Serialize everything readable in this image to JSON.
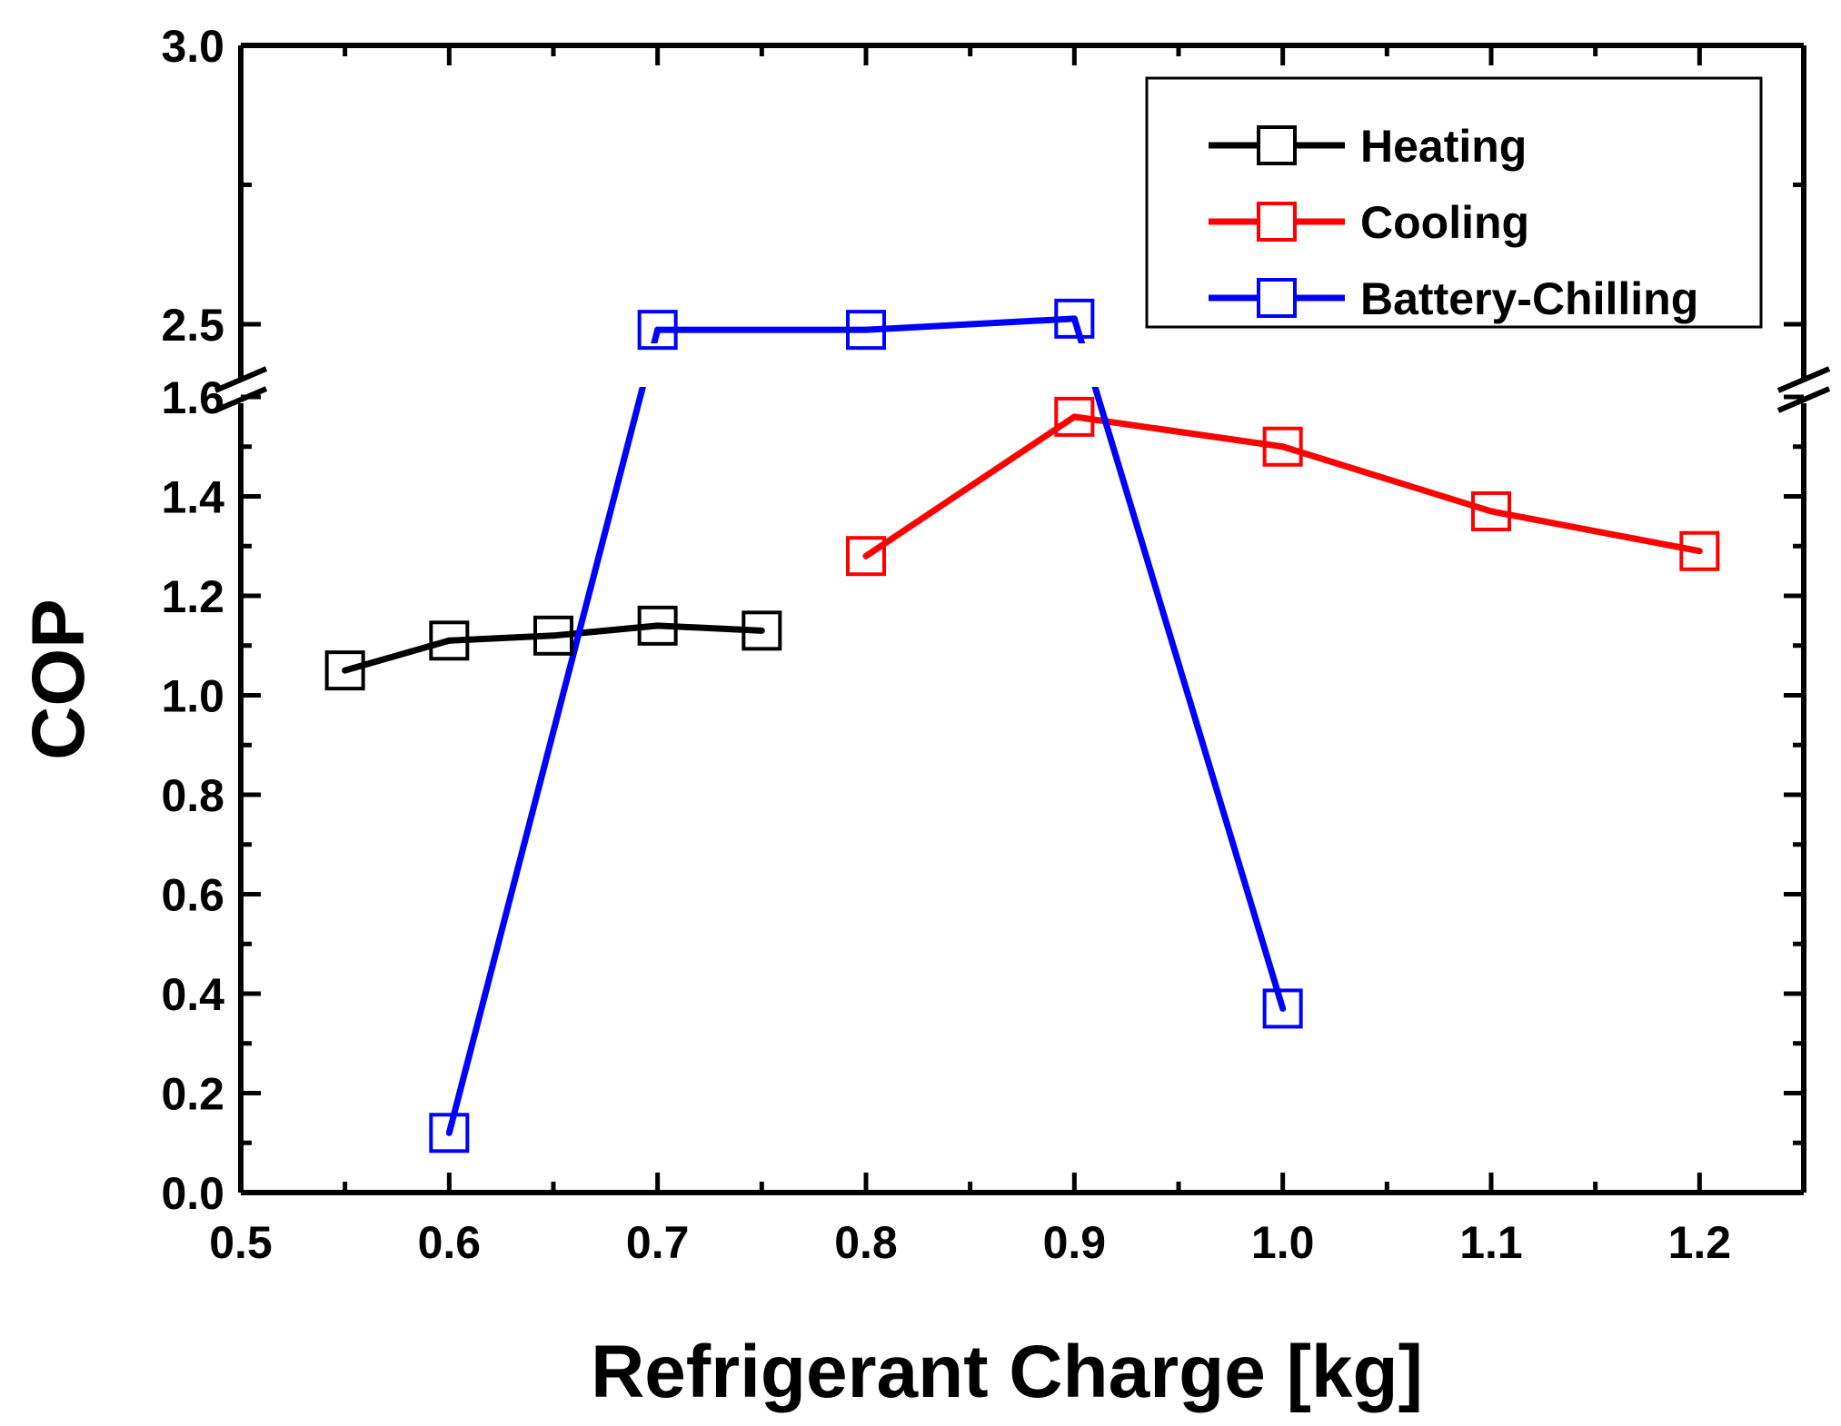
{
  "chart_data": {
    "type": "line",
    "title": "",
    "xlabel": "Refrigerant Charge [kg]",
    "ylabel": "COP",
    "xlim": [
      0.5,
      1.25
    ],
    "ylim": [
      0.0,
      3.0
    ],
    "y_axis_break": {
      "lower_range": [
        0.0,
        1.6
      ],
      "upper_range": [
        2.5,
        3.0
      ]
    },
    "x_ticks": [
      "0.5",
      "0.6",
      "0.7",
      "0.8",
      "0.9",
      "1.0",
      "1.1",
      "1.2"
    ],
    "y_ticks_lower": [
      "0.0",
      "0.2",
      "0.4",
      "0.6",
      "0.8",
      "1.0",
      "1.2",
      "1.4",
      "1.6"
    ],
    "y_ticks_upper": [
      "2.5",
      "3.0"
    ],
    "legend_position": "top-right",
    "series": [
      {
        "name": "Heating",
        "color": "#000000",
        "marker": "open-square",
        "x": [
          0.55,
          0.6,
          0.65,
          0.7,
          0.75
        ],
        "values": [
          1.05,
          1.11,
          1.12,
          1.14,
          1.13
        ]
      },
      {
        "name": "Cooling",
        "color": "#ff0000",
        "marker": "open-square",
        "x": [
          0.8,
          0.9,
          1.0,
          1.1,
          1.2
        ],
        "values": [
          1.28,
          1.56,
          1.5,
          1.37,
          1.29
        ]
      },
      {
        "name": "Battery-Chilling",
        "color": "#0000ff",
        "marker": "open-square",
        "x": [
          0.6,
          0.7,
          0.8,
          0.9,
          1.0
        ],
        "values": [
          0.12,
          2.49,
          2.49,
          2.51,
          0.37
        ]
      }
    ]
  }
}
